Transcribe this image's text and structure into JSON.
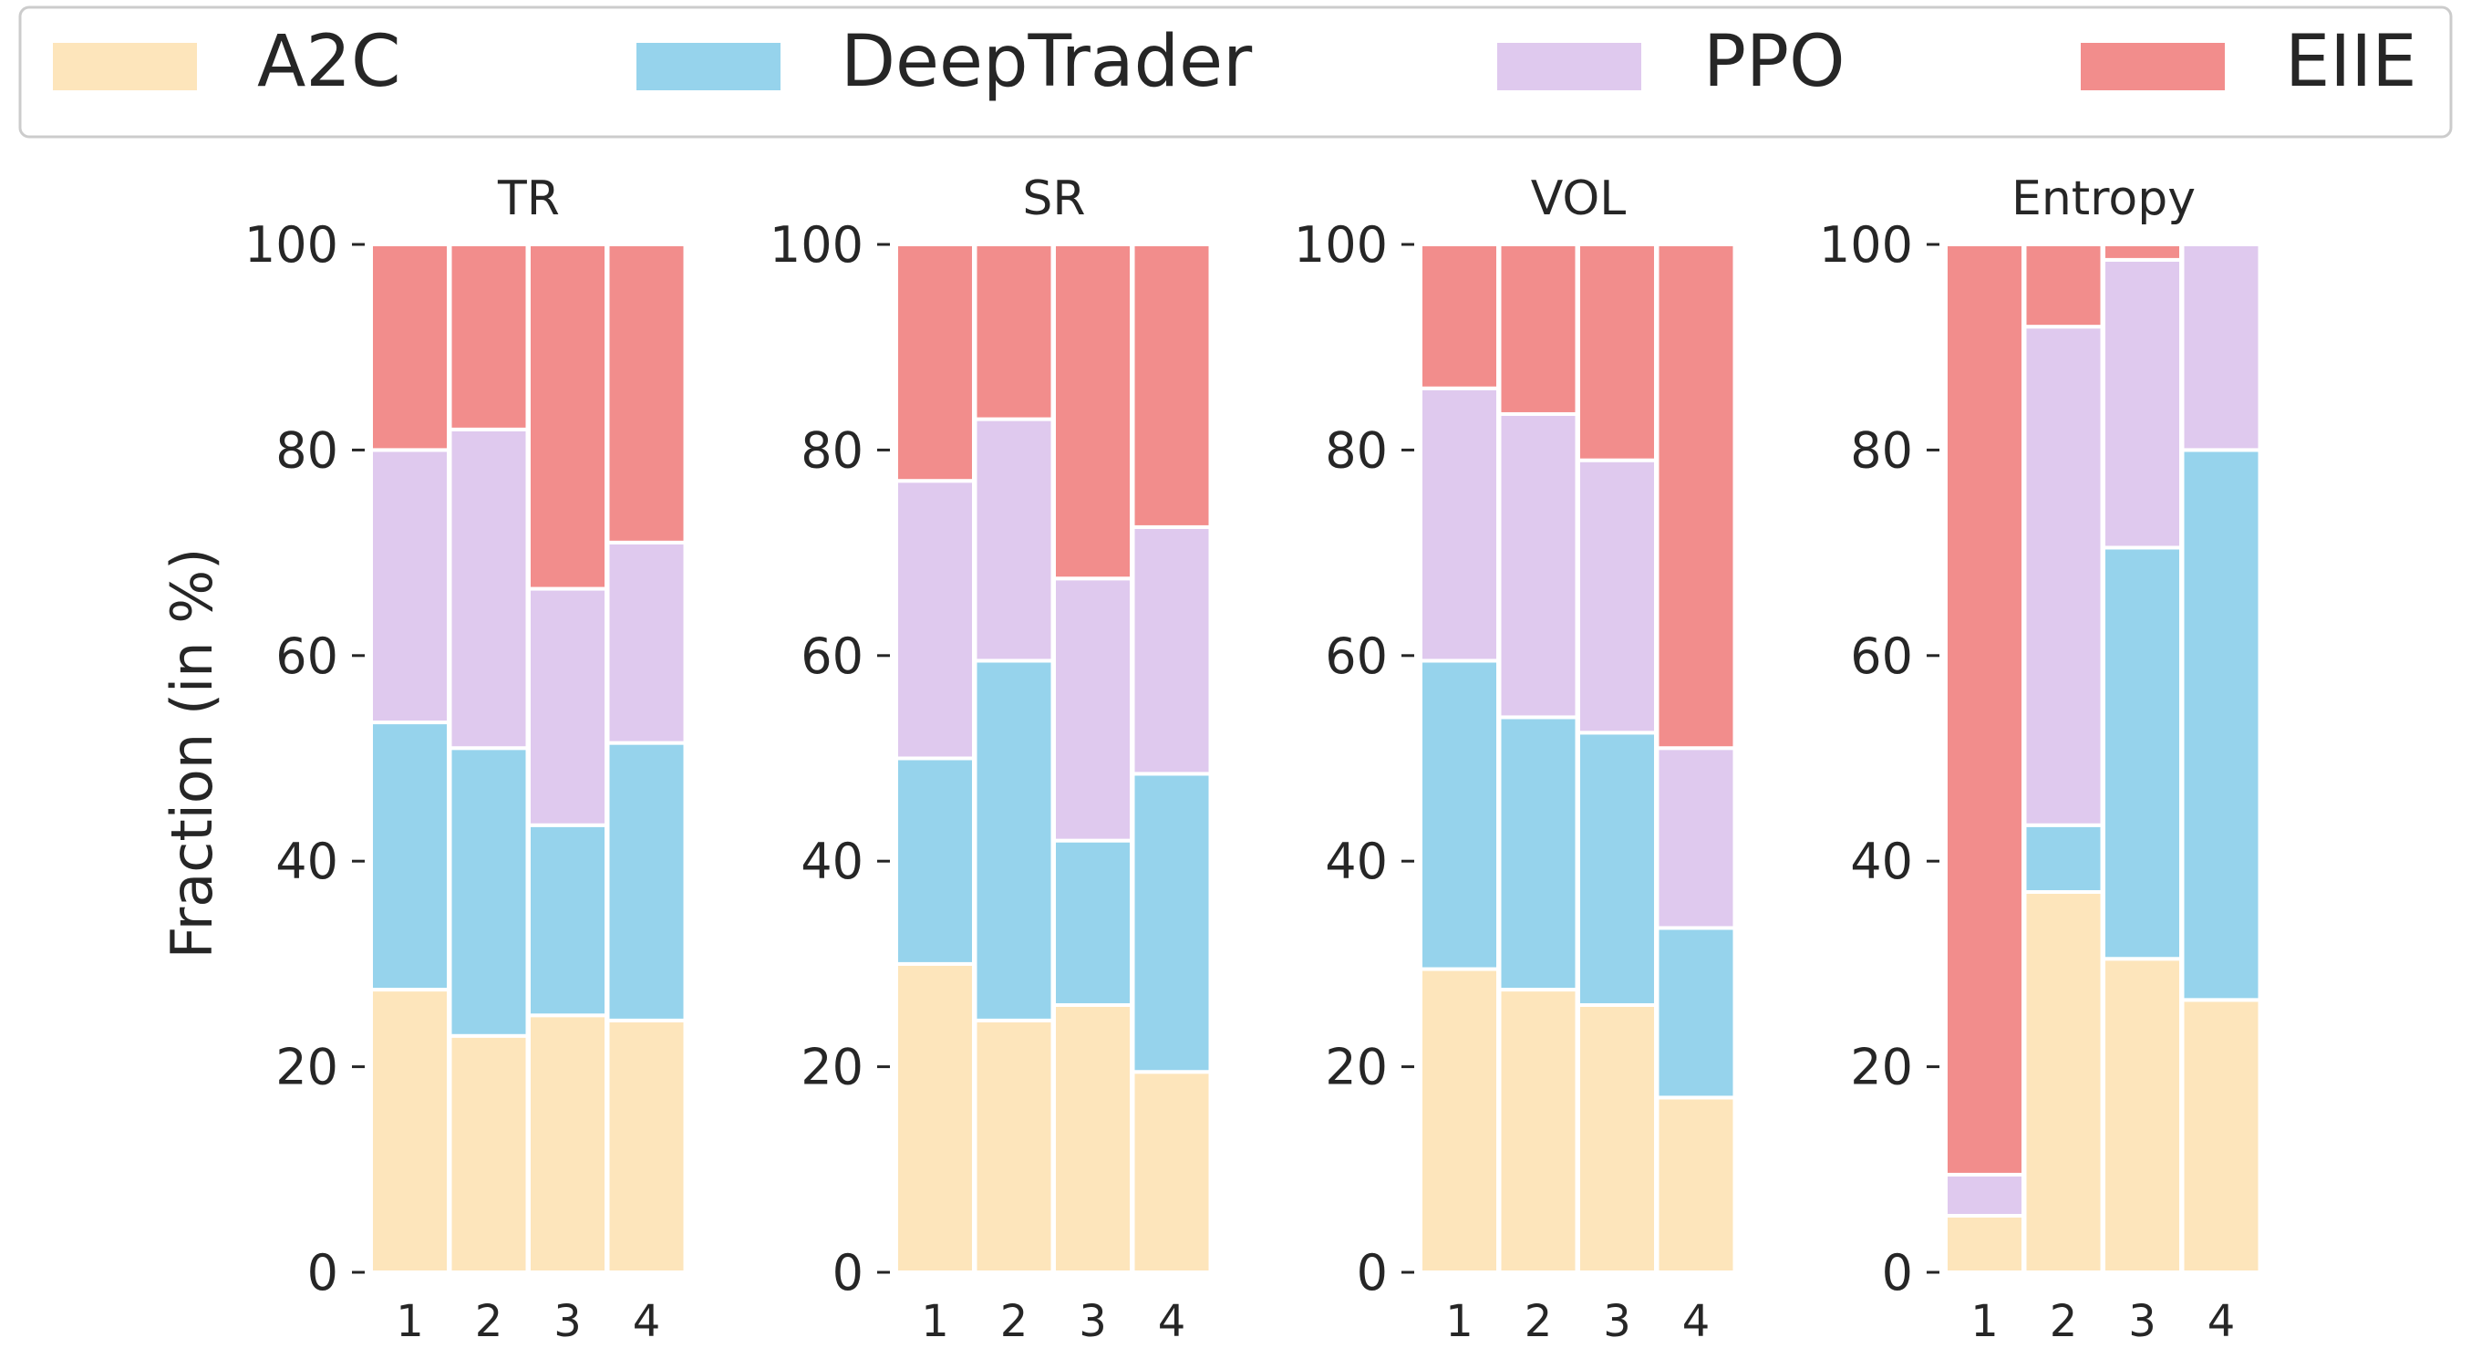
{
  "chart_data": {
    "type": "bar",
    "stacked": true,
    "ylabel": "Fraction (in %)",
    "ylim": [
      0,
      100
    ],
    "yticks": [
      "0",
      "20",
      "40",
      "60",
      "80",
      "100"
    ],
    "categories": [
      "1",
      "2",
      "3",
      "4"
    ],
    "legend": {
      "placement": "top",
      "entries": [
        {
          "name": "A2C",
          "color": "#fde5bb"
        },
        {
          "name": "DeepTrader",
          "color": "#96d3ec"
        },
        {
          "name": "PPO",
          "color": "#dfc9ee"
        },
        {
          "name": "EIIE",
          "color": "#f28d8c"
        }
      ]
    },
    "panels": [
      {
        "title": "TR",
        "series": [
          {
            "name": "A2C",
            "values": [
              27.5,
              23,
              25,
              24.5
            ]
          },
          {
            "name": "DeepTrader",
            "values": [
              26,
              28,
              18.5,
              27
            ]
          },
          {
            "name": "PPO",
            "values": [
              26.5,
              31,
              23,
              19.5
            ]
          },
          {
            "name": "EIIE",
            "values": [
              20,
              18,
              33.5,
              29
            ]
          }
        ]
      },
      {
        "title": "SR",
        "series": [
          {
            "name": "A2C",
            "values": [
              30,
              24.5,
              26,
              19.5
            ]
          },
          {
            "name": "DeepTrader",
            "values": [
              20,
              35,
              16,
              29
            ]
          },
          {
            "name": "PPO",
            "values": [
              27,
              23.5,
              25.5,
              24
            ]
          },
          {
            "name": "EIIE",
            "values": [
              23,
              17,
              32.5,
              27.5
            ]
          }
        ]
      },
      {
        "title": "VOL",
        "series": [
          {
            "name": "A2C",
            "values": [
              29.5,
              27.5,
              26,
              17
            ]
          },
          {
            "name": "DeepTrader",
            "values": [
              30,
              26.5,
              26.5,
              16.5
            ]
          },
          {
            "name": "PPO",
            "values": [
              26.5,
              29.5,
              26.5,
              17.5
            ]
          },
          {
            "name": "EIIE",
            "values": [
              14,
              16.5,
              21,
              49
            ]
          }
        ]
      },
      {
        "title": "Entropy",
        "series": [
          {
            "name": "A2C",
            "values": [
              5.5,
              37,
              30.5,
              26.5
            ]
          },
          {
            "name": "DeepTrader",
            "values": [
              0,
              6.5,
              40,
              53.5
            ]
          },
          {
            "name": "PPO",
            "values": [
              4,
              48.5,
              28,
              20
            ]
          },
          {
            "name": "EIIE",
            "values": [
              90.5,
              8,
              1.5,
              0
            ]
          }
        ]
      }
    ]
  }
}
